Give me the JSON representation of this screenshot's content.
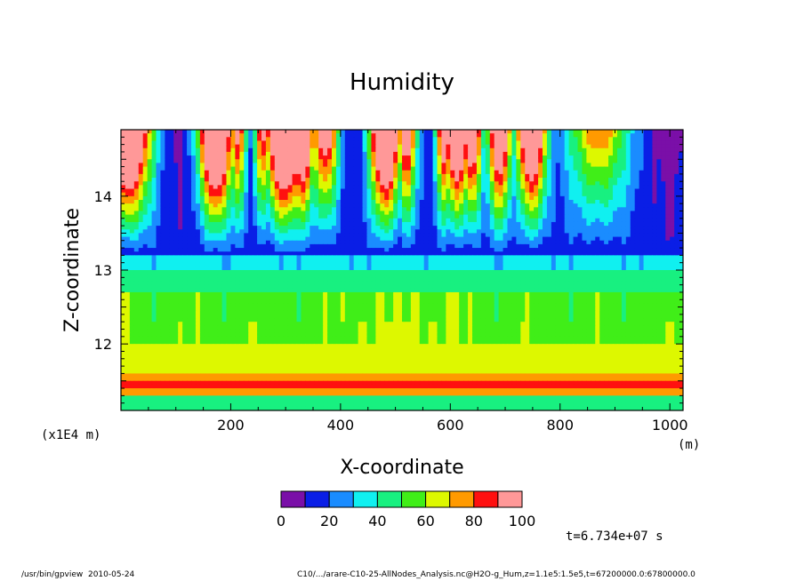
{
  "chart_data": {
    "type": "heatmap",
    "title": "Humidity",
    "xlabel": "X-coordinate",
    "ylabel": "Z-coordinate",
    "x_unit": "(m)",
    "y_unit": "(x1E4 m)",
    "xlim": [
      0,
      1024
    ],
    "ylim": [
      11.1,
      14.9
    ],
    "x_ticks": [
      200,
      400,
      600,
      800,
      1000
    ],
    "y_ticks": [
      12,
      13,
      14
    ],
    "colorbar": {
      "colors": [
        "#7a0fa8",
        "#0a1ee6",
        "#1a8cff",
        "#10f0f0",
        "#18f080",
        "#40ee18",
        "#ddf800",
        "#ff9a00",
        "#ff1010",
        "#ff9898"
      ],
      "tick_labels": [
        "0",
        "20",
        "40",
        "60",
        "80",
        "100"
      ],
      "levels": [
        0,
        10,
        20,
        30,
        40,
        50,
        60,
        70,
        80,
        90,
        100
      ]
    },
    "time_label": "t=6.734e+07 s"
  },
  "footer": {
    "left": "/usr/bin/gpview  2010-05-24",
    "right": "C10/.../arare-C10-25-AllNodes_Analysis.nc@H2O-g_Hum,z=1.1e5:1.5e5,t=67200000.0:67800000.0"
  }
}
